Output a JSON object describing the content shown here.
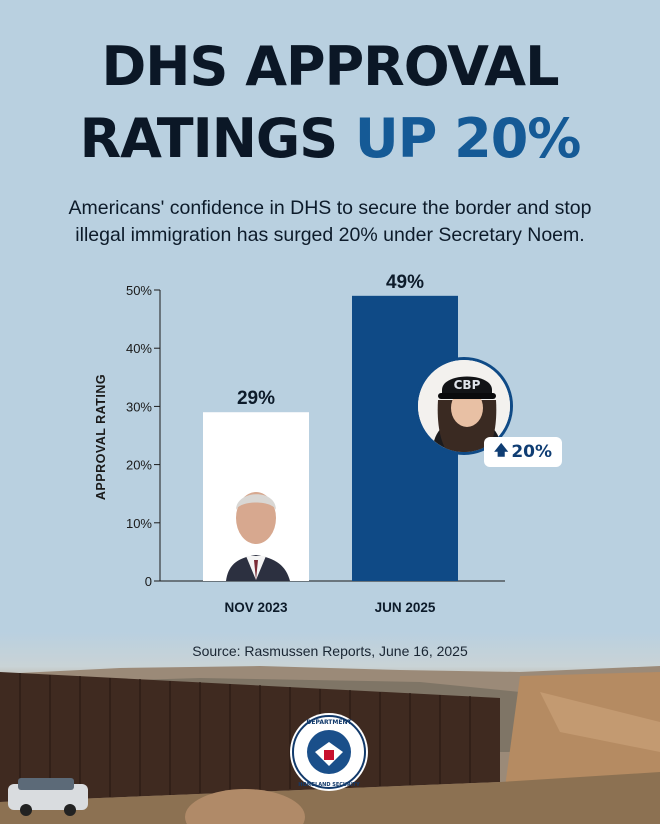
{
  "header": {
    "title_line1": "DHS APPROVAL",
    "title_line2_main": "RATINGS ",
    "title_line2_accent": "UP 20%",
    "subtitle_line1": "Americans' confidence in DHS to secure the border and stop",
    "subtitle_line2": "illegal immigration has surged 20% under Secretary Noem."
  },
  "chart_data": {
    "type": "bar",
    "categories": [
      "NOV 2023",
      "JUN 2025"
    ],
    "values": [
      29,
      49
    ],
    "data_labels": [
      "29%",
      "49%"
    ],
    "ylabel": "APPROVAL RATING",
    "ylim": [
      0,
      50
    ],
    "yticks": [
      0,
      10,
      20,
      30,
      40,
      50
    ],
    "ytick_labels": [
      "0",
      "10%",
      "20%",
      "30%",
      "40%",
      "50%"
    ],
    "bar_colors": [
      "#ffffff",
      "#0f4a86"
    ],
    "grid": false,
    "annotation": "20%"
  },
  "badge": {
    "icon": "up-arrow-icon",
    "text": "20%"
  },
  "source": "Source: Rasmussen Reports, June 16, 2025",
  "seal": {
    "icon": "dhs-seal-icon",
    "text": "U.S. DEPARTMENT OF HOMELAND SECURITY"
  },
  "colors": {
    "background": "#b9d0e0",
    "accent": "#155a96",
    "title": "#0b1726"
  }
}
